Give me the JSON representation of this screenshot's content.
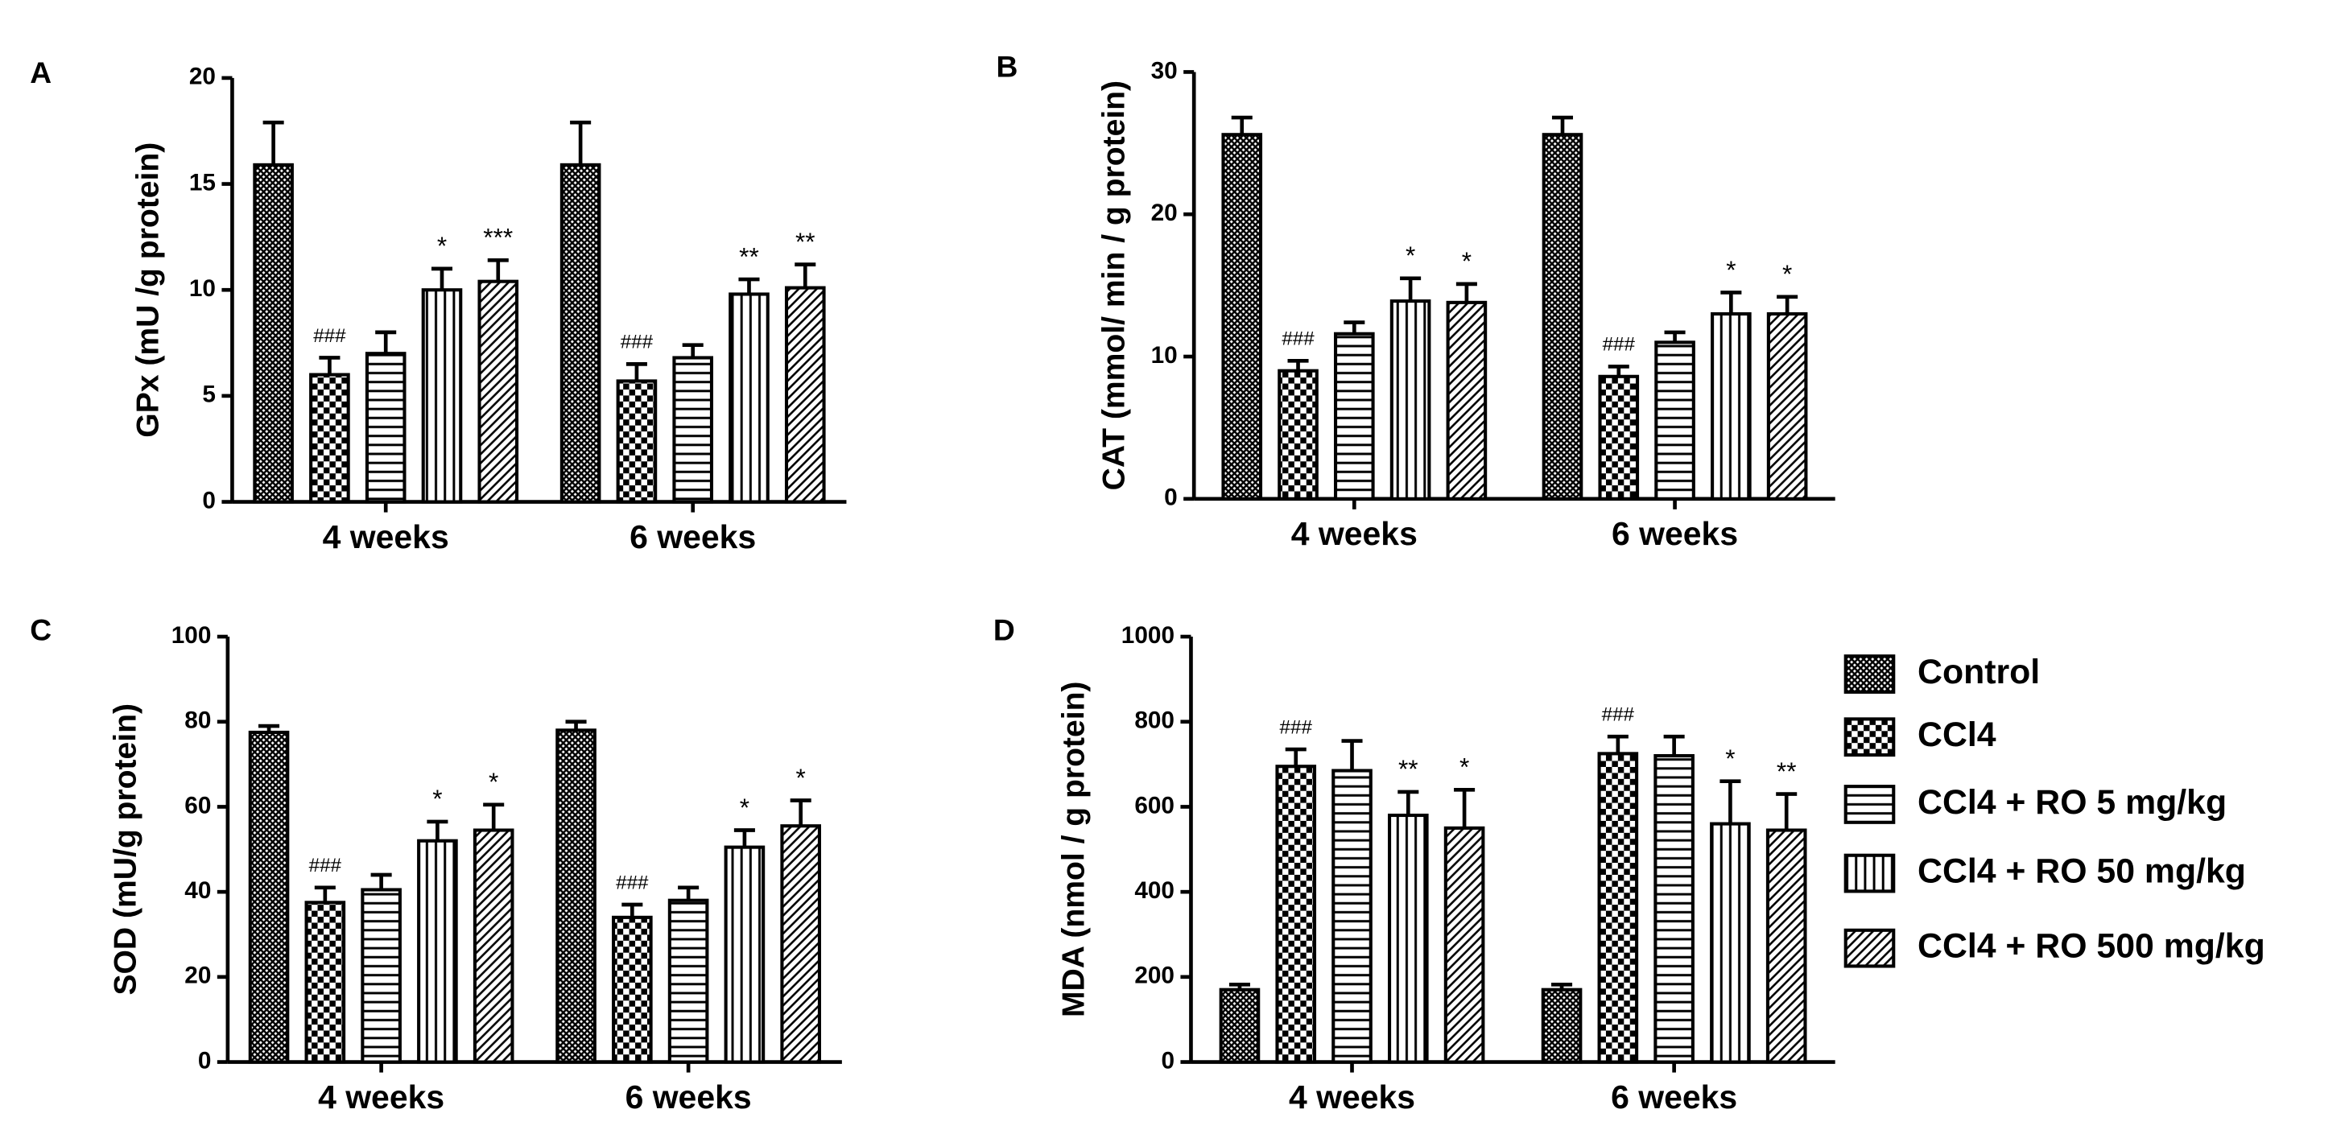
{
  "chart_data": [
    {
      "type": "bar",
      "panel": "A",
      "ylabel": "GPx (mU /g protein)",
      "categories": [
        "4 weeks",
        "6 weeks"
      ],
      "ylim": [
        0,
        20
      ],
      "yticks": [
        0,
        5,
        10,
        15,
        20
      ],
      "series": [
        {
          "name": "Control",
          "color": "#000000",
          "pattern": "crosshatch",
          "values": [
            15.9,
            15.9
          ],
          "errors": [
            2.0,
            2.0
          ],
          "annotations": [
            null,
            null
          ]
        },
        {
          "name": "CCl4",
          "color": "#000000",
          "pattern": "checker",
          "values": [
            6.0,
            5.7
          ],
          "errors": [
            0.8,
            0.8
          ],
          "annotations": [
            "###",
            "###"
          ]
        },
        {
          "name": "CCl4 + RO 5 mg/kg",
          "color": "#000000",
          "pattern": "horizontal",
          "values": [
            7.0,
            6.8
          ],
          "errors": [
            1.0,
            0.6
          ],
          "annotations": [
            null,
            null
          ]
        },
        {
          "name": "CCl4 + RO 50 mg/kg",
          "color": "#000000",
          "pattern": "vertical",
          "values": [
            10.0,
            9.8
          ],
          "errors": [
            1.0,
            0.7
          ],
          "annotations": [
            "*",
            "**"
          ]
        },
        {
          "name": "CCl4 + RO 500 mg/kg",
          "color": "#000000",
          "pattern": "diagonal",
          "values": [
            10.4,
            10.1
          ],
          "errors": [
            1.0,
            1.1
          ],
          "annotations": [
            "***",
            "**"
          ]
        }
      ]
    },
    {
      "type": "bar",
      "panel": "B",
      "ylabel": "CAT (mmol/ min / g protein)",
      "categories": [
        "4 weeks",
        "6 weeks"
      ],
      "ylim": [
        0,
        30
      ],
      "yticks": [
        0,
        10,
        20,
        30
      ],
      "series": [
        {
          "name": "Control",
          "color": "#000000",
          "pattern": "crosshatch",
          "values": [
            25.6,
            25.6
          ],
          "errors": [
            1.2,
            1.2
          ],
          "annotations": [
            null,
            null
          ]
        },
        {
          "name": "CCl4",
          "color": "#000000",
          "pattern": "checker",
          "values": [
            9.0,
            8.6
          ],
          "errors": [
            0.7,
            0.7
          ],
          "annotations": [
            "###",
            "###"
          ]
        },
        {
          "name": "CCl4 + RO 5 mg/kg",
          "color": "#000000",
          "pattern": "horizontal",
          "values": [
            11.6,
            11.0
          ],
          "errors": [
            0.8,
            0.7
          ],
          "annotations": [
            null,
            null
          ]
        },
        {
          "name": "CCl4 + RO 50 mg/kg",
          "color": "#000000",
          "pattern": "vertical",
          "values": [
            13.9,
            13.0
          ],
          "errors": [
            1.6,
            1.5
          ],
          "annotations": [
            "*",
            "*"
          ]
        },
        {
          "name": "CCl4 + RO 500 mg/kg",
          "color": "#000000",
          "pattern": "diagonal",
          "values": [
            13.8,
            13.0
          ],
          "errors": [
            1.3,
            1.2
          ],
          "annotations": [
            "*",
            "*"
          ]
        }
      ]
    },
    {
      "type": "bar",
      "panel": "C",
      "ylabel": "SOD (mU/g protein)",
      "categories": [
        "4 weeks",
        "6 weeks"
      ],
      "ylim": [
        0,
        100
      ],
      "yticks": [
        0,
        20,
        40,
        60,
        80,
        100
      ],
      "series": [
        {
          "name": "Control",
          "color": "#000000",
          "pattern": "crosshatch",
          "values": [
            77.5,
            78
          ],
          "errors": [
            1.5,
            2
          ],
          "annotations": [
            null,
            null
          ]
        },
        {
          "name": "CCl4",
          "color": "#000000",
          "pattern": "checker",
          "values": [
            37.5,
            34
          ],
          "errors": [
            3.5,
            3
          ],
          "annotations": [
            "###",
            "###"
          ]
        },
        {
          "name": "CCl4 + RO 5 mg/kg",
          "color": "#000000",
          "pattern": "horizontal",
          "values": [
            40.5,
            38
          ],
          "errors": [
            3.5,
            3
          ],
          "annotations": [
            null,
            null
          ]
        },
        {
          "name": "CCl4 + RO 50 mg/kg",
          "color": "#000000",
          "pattern": "vertical",
          "values": [
            52,
            50.5
          ],
          "errors": [
            4.5,
            4
          ],
          "annotations": [
            "*",
            "*"
          ]
        },
        {
          "name": "CCl4 + RO 500 mg/kg",
          "color": "#000000",
          "pattern": "diagonal",
          "values": [
            54.5,
            55.5
          ],
          "errors": [
            6,
            6
          ],
          "annotations": [
            "*",
            "*"
          ]
        }
      ]
    },
    {
      "type": "bar",
      "panel": "D",
      "ylabel": "MDA (nmol / g protein)",
      "categories": [
        "4 weeks",
        "6 weeks"
      ],
      "ylim": [
        0,
        1000
      ],
      "yticks": [
        0,
        200,
        400,
        600,
        800,
        1000
      ],
      "legend": "right",
      "series": [
        {
          "name": "Control",
          "color": "#000000",
          "pattern": "crosshatch",
          "values": [
            170,
            170
          ],
          "errors": [
            12,
            12
          ],
          "annotations": [
            null,
            null
          ]
        },
        {
          "name": "CCl4",
          "color": "#000000",
          "pattern": "checker",
          "values": [
            695,
            725
          ],
          "errors": [
            40,
            40
          ],
          "annotations": [
            "###",
            "###"
          ]
        },
        {
          "name": "CCl4 + RO 5 mg/kg",
          "color": "#000000",
          "pattern": "horizontal",
          "values": [
            685,
            720
          ],
          "errors": [
            70,
            45
          ],
          "annotations": [
            null,
            null
          ]
        },
        {
          "name": "CCl4 + RO 50 mg/kg",
          "color": "#000000",
          "pattern": "vertical",
          "values": [
            580,
            560
          ],
          "errors": [
            55,
            100
          ],
          "annotations": [
            "**",
            "*"
          ]
        },
        {
          "name": "CCl4 + RO 500 mg/kg",
          "color": "#000000",
          "pattern": "diagonal",
          "values": [
            550,
            545
          ],
          "errors": [
            90,
            85
          ],
          "annotations": [
            "*",
            "**"
          ]
        }
      ]
    }
  ]
}
